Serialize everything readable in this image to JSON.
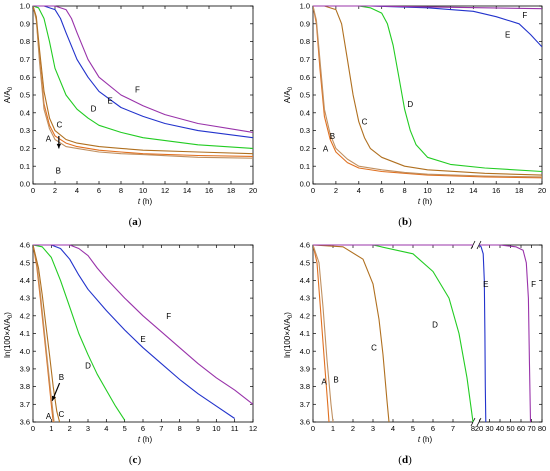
{
  "colors": {
    "A": "#e07020",
    "B": "#c09060",
    "C": "#b07020",
    "D": "#22cc22",
    "E": "#2233cc",
    "F": "#9933aa"
  },
  "chart_data": [
    {
      "type": "line",
      "panel_label_open": "(",
      "panel_label_letter": "a",
      "panel_label_close": ")",
      "xlabel_italic": "t",
      "xlabel_unit": " (h)",
      "ylabel_base": "A/A",
      "ylabel_sub": "0",
      "xlim": [
        0,
        20
      ],
      "ylim": [
        0,
        1.0
      ],
      "xticks": [
        0,
        2,
        4,
        6,
        8,
        10,
        12,
        14,
        16,
        18,
        20
      ],
      "yticks": [
        0,
        0.1,
        0.2,
        0.3,
        0.4,
        0.5,
        0.6,
        0.7,
        0.8,
        0.9,
        1.0
      ],
      "ytick_decimals": 1,
      "grid": false,
      "series": [
        {
          "name": "A",
          "x": [
            0,
            0.3,
            0.6,
            1,
            1.5,
            2,
            3,
            4,
            6,
            8,
            10,
            15,
            20
          ],
          "y": [
            1.0,
            0.93,
            0.7,
            0.45,
            0.33,
            0.27,
            0.23,
            0.21,
            0.19,
            0.18,
            0.17,
            0.16,
            0.155
          ]
        },
        {
          "name": "B",
          "x": [
            0,
            0.3,
            0.6,
            1,
            1.5,
            2,
            3,
            4,
            6,
            8,
            10,
            15,
            20
          ],
          "y": [
            1.0,
            0.92,
            0.68,
            0.42,
            0.31,
            0.25,
            0.21,
            0.2,
            0.18,
            0.17,
            0.165,
            0.15,
            0.145
          ]
        },
        {
          "name": "C",
          "x": [
            0,
            0.3,
            0.6,
            1,
            1.5,
            2,
            3,
            4,
            6,
            8,
            10,
            15,
            20
          ],
          "y": [
            1.0,
            0.94,
            0.75,
            0.52,
            0.37,
            0.3,
            0.25,
            0.23,
            0.21,
            0.2,
            0.19,
            0.18,
            0.17
          ]
        },
        {
          "name": "D",
          "x": [
            0,
            0.5,
            1,
            1.5,
            2,
            3,
            4,
            5,
            6,
            8,
            10,
            15,
            20
          ],
          "y": [
            1.0,
            0.99,
            0.93,
            0.8,
            0.65,
            0.5,
            0.42,
            0.37,
            0.33,
            0.29,
            0.26,
            0.22,
            0.2
          ]
        },
        {
          "name": "E",
          "x": [
            0,
            1,
            2,
            2.5,
            3,
            4,
            5,
            6,
            8,
            10,
            12,
            15,
            20
          ],
          "y": [
            1.0,
            1.0,
            0.98,
            0.93,
            0.85,
            0.7,
            0.6,
            0.52,
            0.43,
            0.38,
            0.34,
            0.3,
            0.26
          ]
        },
        {
          "name": "F",
          "x": [
            0,
            1,
            2,
            3,
            3.5,
            4,
            5,
            6,
            8,
            10,
            12,
            15,
            20
          ],
          "y": [
            1.0,
            1.0,
            1.0,
            0.98,
            0.93,
            0.85,
            0.7,
            0.6,
            0.5,
            0.44,
            0.39,
            0.34,
            0.29
          ]
        }
      ],
      "labels": [
        {
          "text": "A",
          "x": 1.4,
          "y": 0.255
        },
        {
          "text": "B",
          "x": 2.3,
          "y": 0.075
        },
        {
          "text": "C",
          "x": 2.4,
          "y": 0.335
        },
        {
          "text": "D",
          "x": 5.5,
          "y": 0.425
        },
        {
          "text": "E",
          "x": 7.0,
          "y": 0.47
        },
        {
          "text": "F",
          "x": 9.5,
          "y": 0.53
        }
      ],
      "arrow": {
        "x": 2.35,
        "y1": 0.27,
        "y2": 0.2
      }
    },
    {
      "type": "line",
      "panel_label_open": "(",
      "panel_label_letter": "b",
      "panel_label_close": ")",
      "xlabel_italic": "t",
      "xlabel_unit": " (h)",
      "ylabel_base": "A/A",
      "ylabel_sub": "0",
      "xlim": [
        0,
        20
      ],
      "ylim": [
        0,
        1.0
      ],
      "xticks": [
        0,
        2,
        4,
        6,
        8,
        10,
        12,
        14,
        16,
        18,
        20
      ],
      "yticks": [
        0,
        0.1,
        0.2,
        0.3,
        0.4,
        0.5,
        0.6,
        0.7,
        0.8,
        0.9,
        1.0
      ],
      "ytick_decimals": 1,
      "grid": false,
      "series": [
        {
          "name": "A",
          "x": [
            0,
            0.3,
            0.6,
            1,
            1.5,
            2,
            3,
            4,
            6,
            8,
            10,
            15,
            20
          ],
          "y": [
            1.0,
            0.9,
            0.65,
            0.38,
            0.25,
            0.18,
            0.12,
            0.09,
            0.07,
            0.06,
            0.05,
            0.04,
            0.035
          ]
        },
        {
          "name": "B",
          "x": [
            0,
            0.3,
            0.6,
            1,
            1.5,
            2,
            3,
            4,
            6,
            8,
            10,
            15,
            20
          ],
          "y": [
            1.0,
            0.92,
            0.7,
            0.42,
            0.28,
            0.2,
            0.14,
            0.1,
            0.08,
            0.065,
            0.055,
            0.045,
            0.04
          ]
        },
        {
          "name": "C",
          "x": [
            0,
            1,
            2,
            2.5,
            3,
            3.5,
            4,
            4.5,
            5,
            6,
            8,
            10,
            15,
            20
          ],
          "y": [
            1.0,
            1.0,
            0.98,
            0.9,
            0.7,
            0.5,
            0.35,
            0.26,
            0.2,
            0.15,
            0.1,
            0.08,
            0.06,
            0.05
          ]
        },
        {
          "name": "D",
          "x": [
            0,
            4,
            5,
            6,
            6.5,
            7,
            7.5,
            8,
            8.5,
            9,
            10,
            12,
            15,
            20
          ],
          "y": [
            1.0,
            1.0,
            0.99,
            0.96,
            0.9,
            0.78,
            0.6,
            0.42,
            0.3,
            0.22,
            0.15,
            0.11,
            0.09,
            0.07
          ]
        },
        {
          "name": "E",
          "x": [
            0,
            5,
            10,
            14,
            16,
            18,
            19,
            20
          ],
          "y": [
            1.0,
            1.0,
            0.99,
            0.97,
            0.94,
            0.9,
            0.84,
            0.77
          ]
        },
        {
          "name": "F",
          "x": [
            0,
            5,
            10,
            15,
            20
          ],
          "y": [
            1.0,
            1.0,
            0.995,
            0.99,
            0.985
          ]
        }
      ],
      "labels": [
        {
          "text": "A",
          "x": 1.1,
          "y": 0.2
        },
        {
          "text": "B",
          "x": 1.7,
          "y": 0.27
        },
        {
          "text": "C",
          "x": 4.5,
          "y": 0.35
        },
        {
          "text": "D",
          "x": 8.5,
          "y": 0.45
        },
        {
          "text": "E",
          "x": 17.0,
          "y": 0.84
        },
        {
          "text": "F",
          "x": 18.5,
          "y": 0.95
        }
      ]
    },
    {
      "type": "line",
      "panel_label_open": "(",
      "panel_label_letter": "c",
      "panel_label_close": ")",
      "xlabel_italic": "t",
      "xlabel_unit": " (h)",
      "ylabel_base": "ln(100×A/A",
      "ylabel_sub": "0",
      "ylabel_end": ")",
      "xlim": [
        0,
        12
      ],
      "ylim": [
        3.6,
        4.6
      ],
      "xticks": [
        0,
        1,
        2,
        3,
        4,
        5,
        6,
        7,
        8,
        9,
        10,
        11,
        12
      ],
      "yticks": [
        3.6,
        3.7,
        3.8,
        3.9,
        4.0,
        4.1,
        4.2,
        4.3,
        4.4,
        4.5,
        4.6
      ],
      "ytick_decimals": 1,
      "grid": false,
      "series": [
        {
          "name": "A",
          "x": [
            0,
            0.2,
            0.4,
            0.6,
            0.8,
            1.0,
            1.1
          ],
          "y": [
            4.6,
            4.48,
            4.3,
            4.1,
            3.9,
            3.7,
            3.6
          ]
        },
        {
          "name": "B",
          "x": [
            0,
            0.2,
            0.4,
            0.6,
            0.8,
            1.0,
            1.15
          ],
          "y": [
            4.6,
            4.5,
            4.33,
            4.13,
            3.93,
            3.74,
            3.6
          ]
        },
        {
          "name": "C",
          "x": [
            0,
            0.3,
            0.5,
            0.7,
            0.9,
            1.1,
            1.3,
            1.45
          ],
          "y": [
            4.6,
            4.47,
            4.32,
            4.15,
            3.98,
            3.8,
            3.66,
            3.6
          ]
        },
        {
          "name": "D",
          "x": [
            0,
            0.5,
            1.0,
            1.5,
            2.0,
            2.5,
            3.0,
            3.5,
            4.0,
            4.5,
            5.0
          ],
          "y": [
            4.6,
            4.59,
            4.53,
            4.4,
            4.25,
            4.1,
            3.98,
            3.87,
            3.78,
            3.69,
            3.61
          ]
        },
        {
          "name": "E",
          "x": [
            0,
            1,
            1.5,
            2,
            2.5,
            3,
            4,
            5,
            6,
            7,
            8,
            9,
            10,
            11
          ],
          "y": [
            4.6,
            4.6,
            4.58,
            4.52,
            4.43,
            4.35,
            4.23,
            4.12,
            4.02,
            3.93,
            3.84,
            3.76,
            3.69,
            3.62
          ]
        },
        {
          "name": "F",
          "x": [
            0,
            2,
            2.5,
            3,
            3.5,
            4,
            5,
            6,
            7,
            8,
            9,
            10,
            11,
            12
          ],
          "y": [
            4.6,
            4.6,
            4.58,
            4.54,
            4.47,
            4.41,
            4.3,
            4.2,
            4.11,
            4.02,
            3.93,
            3.85,
            3.78,
            3.7
          ]
        }
      ],
      "labels": [
        {
          "text": "A",
          "x": 0.85,
          "y": 3.635
        },
        {
          "text": "B",
          "x": 1.55,
          "y": 3.855
        },
        {
          "text": "C",
          "x": 1.55,
          "y": 3.645
        },
        {
          "text": "D",
          "x": 3.0,
          "y": 3.92
        },
        {
          "text": "E",
          "x": 6.0,
          "y": 4.07
        },
        {
          "text": "F",
          "x": 7.4,
          "y": 4.2
        }
      ],
      "arrow": {
        "x1": 1.45,
        "y1": 3.82,
        "x2": 1.05,
        "y2": 3.72
      }
    },
    {
      "type": "line",
      "panel_label_open": "(",
      "panel_label_letter": "d",
      "panel_label_close": ")",
      "xlabel_italic": "t",
      "xlabel_unit": " (h)",
      "ylabel_base": "ln(100×A/A",
      "ylabel_sub": "0",
      "ylabel_end": ")",
      "xlim": [
        0,
        8
      ],
      "x2lim": [
        20,
        80
      ],
      "ylim": [
        3.6,
        4.6
      ],
      "xticks": [
        0,
        1,
        2,
        3,
        4,
        5,
        6,
        7,
        8
      ],
      "x2ticks": [
        20,
        30,
        40,
        50,
        60,
        70,
        80
      ],
      "yticks": [
        3.6,
        3.7,
        3.8,
        3.9,
        4.0,
        4.1,
        4.2,
        4.3,
        4.4,
        4.5,
        4.6
      ],
      "ytick_decimals": 1,
      "grid": false,
      "series": [
        {
          "name": "A",
          "seg": 1,
          "x": [
            0,
            0.2,
            0.4,
            0.6,
            0.75,
            0.8
          ],
          "y": [
            4.6,
            4.5,
            4.2,
            3.9,
            3.68,
            3.6
          ]
        },
        {
          "name": "B",
          "seg": 1,
          "x": [
            0,
            0.3,
            0.5,
            0.7,
            0.9,
            1.0
          ],
          "y": [
            4.6,
            4.5,
            4.25,
            3.95,
            3.7,
            3.6
          ]
        },
        {
          "name": "C",
          "seg": 1,
          "x": [
            0,
            1.5,
            2.5,
            3.0,
            3.3,
            3.5,
            3.7,
            3.8
          ],
          "y": [
            4.6,
            4.59,
            4.52,
            4.38,
            4.18,
            3.98,
            3.72,
            3.6
          ]
        },
        {
          "name": "D",
          "seg": 1,
          "x": [
            0,
            3,
            5,
            6,
            6.8,
            7.3,
            7.7,
            8.0
          ],
          "y": [
            4.6,
            4.6,
            4.55,
            4.45,
            4.3,
            4.1,
            3.85,
            3.6
          ]
        },
        {
          "name": "E",
          "seg": 1,
          "x": [
            0,
            4,
            8
          ],
          "y": [
            4.6,
            4.6,
            4.6
          ]
        },
        {
          "name": "E",
          "seg": 2,
          "x": [
            20,
            22,
            24,
            25,
            25.6,
            26,
            26.5
          ],
          "y": [
            4.6,
            4.59,
            4.55,
            4.4,
            4.1,
            3.8,
            3.6
          ]
        },
        {
          "name": "F",
          "seg": 1,
          "x": [
            0,
            4,
            8
          ],
          "y": [
            4.6,
            4.6,
            4.6
          ]
        },
        {
          "name": "F",
          "seg": 2,
          "x": [
            20,
            40,
            55,
            62,
            65,
            67,
            68,
            69
          ],
          "y": [
            4.6,
            4.6,
            4.59,
            4.57,
            4.5,
            4.3,
            3.95,
            3.6
          ]
        }
      ],
      "labels": [
        {
          "text": "A",
          "x": 0.55,
          "y": 3.83
        },
        {
          "text": "B",
          "x": 1.15,
          "y": 3.84
        },
        {
          "text": "C",
          "x": 3.05,
          "y": 4.02
        },
        {
          "text": "D",
          "x": 6.1,
          "y": 4.15
        },
        {
          "text": "E",
          "x": 26.5,
          "y": 4.38,
          "seg": 2
        },
        {
          "text": "F",
          "x": 72.0,
          "y": 4.38,
          "seg": 2
        }
      ]
    }
  ]
}
